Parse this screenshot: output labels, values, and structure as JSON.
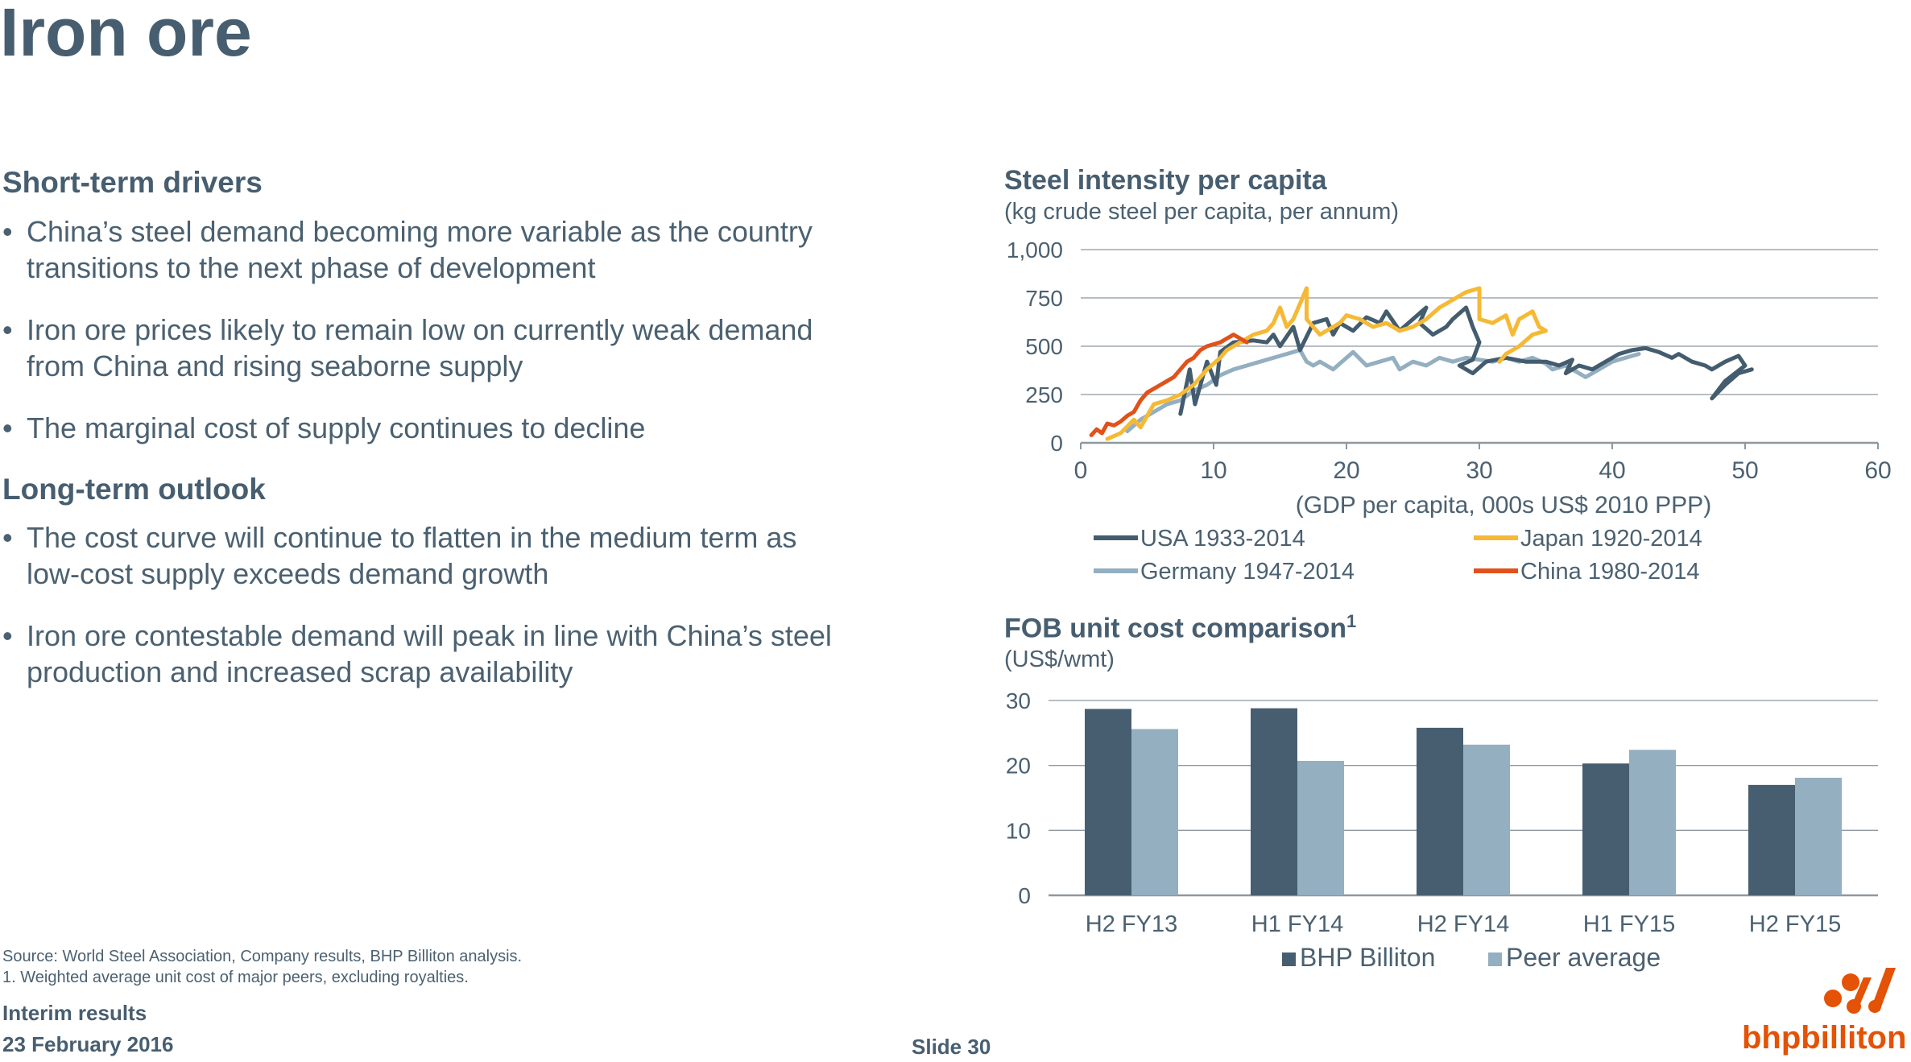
{
  "title": "Iron ore",
  "left": {
    "short_term": {
      "heading": "Short-term drivers",
      "bullets": [
        [
          "China’s steel demand becoming more variable as the country",
          "transitions to the next phase of development"
        ],
        [
          "Iron ore prices likely to remain low on currently weak demand",
          "from China and rising seaborne supply"
        ],
        [
          "The marginal cost of supply continues to decline"
        ]
      ]
    },
    "long_term": {
      "heading": "Long-term outlook",
      "bullets": [
        [
          "The cost curve will continue to flatten in the medium term as",
          "low-cost supply exceeds demand growth"
        ],
        [
          "Iron ore contestable demand will peak in line with China’s steel",
          "production and increased scrap availability"
        ]
      ]
    }
  },
  "footer": {
    "source": "Source:   World Steel Association, Company results, BHP Billiton analysis.",
    "note": "1.  Weighted average unit cost of major peers, excluding royalties.",
    "event": "Interim results",
    "date": "23 February 2016",
    "slide": "Slide 30",
    "logo": "bhpbilliton"
  },
  "colors": {
    "usa": "#435c6e",
    "japan": "#f6b935",
    "germany": "#93afc0",
    "china": "#e0521a",
    "bhp": "#475e70",
    "peer": "#93afc0",
    "grid": "#9aa4ab"
  },
  "chart_data": [
    {
      "type": "line",
      "title": "Steel intensity per capita",
      "subtitle": "(kg crude steel per capita, per annum)",
      "xlabel": "(GDP per capita, 000s US$ 2010 PPP)",
      "xlim": [
        0,
        60
      ],
      "ylim": [
        0,
        1000
      ],
      "xticks": [
        0,
        10,
        20,
        30,
        40,
        50,
        60
      ],
      "yticks": [
        0,
        250,
        500,
        750,
        1000
      ],
      "ytick_labels": [
        "0",
        "250",
        "500",
        "750",
        "1,000"
      ],
      "series": [
        {
          "name": "USA 1933-2014",
          "color_key": "usa",
          "points": [
            [
              7.5,
              150
            ],
            [
              8.2,
              380
            ],
            [
              8.6,
              200
            ],
            [
              9.5,
              420
            ],
            [
              10.2,
              300
            ],
            [
              10.5,
              470
            ],
            [
              11.5,
              520
            ],
            [
              13,
              530
            ],
            [
              14,
              520
            ],
            [
              14.5,
              560
            ],
            [
              15,
              500
            ],
            [
              16,
              600
            ],
            [
              16.5,
              480
            ],
            [
              17.5,
              620
            ],
            [
              18.5,
              640
            ],
            [
              19,
              560
            ],
            [
              19.5,
              620
            ],
            [
              20.5,
              580
            ],
            [
              21.5,
              650
            ],
            [
              22.5,
              620
            ],
            [
              23,
              680
            ],
            [
              24,
              580
            ],
            [
              25,
              640
            ],
            [
              26,
              700
            ],
            [
              25.5,
              620
            ],
            [
              26.5,
              560
            ],
            [
              27.5,
              600
            ],
            [
              28,
              640
            ],
            [
              29,
              700
            ],
            [
              29.5,
              600
            ],
            [
              30,
              520
            ],
            [
              29.5,
              430
            ],
            [
              28.5,
              400
            ],
            [
              29.5,
              360
            ],
            [
              30.5,
              420
            ],
            [
              32,
              440
            ],
            [
              33.5,
              420
            ],
            [
              35,
              420
            ],
            [
              36,
              400
            ],
            [
              37,
              430
            ],
            [
              36.5,
              360
            ],
            [
              37.5,
              400
            ],
            [
              38.5,
              380
            ],
            [
              39.5,
              420
            ],
            [
              40.5,
              460
            ],
            [
              41.5,
              480
            ],
            [
              42.5,
              490
            ],
            [
              43.5,
              470
            ],
            [
              44.5,
              440
            ],
            [
              45,
              460
            ],
            [
              46,
              420
            ],
            [
              47,
              400
            ],
            [
              47.5,
              380
            ],
            [
              48.5,
              420
            ],
            [
              49.5,
              450
            ],
            [
              50,
              400
            ],
            [
              48.5,
              320
            ],
            [
              47.5,
              230
            ],
            [
              48.5,
              300
            ],
            [
              49.5,
              360
            ],
            [
              50.5,
              380
            ]
          ]
        },
        {
          "name": "Japan 1920-2014",
          "color_key": "japan",
          "points": [
            [
              2,
              20
            ],
            [
              3,
              50
            ],
            [
              4,
              120
            ],
            [
              4.5,
              80
            ],
            [
              5,
              140
            ],
            [
              5.5,
              200
            ],
            [
              6.5,
              220
            ],
            [
              7.5,
              250
            ],
            [
              8.5,
              300
            ],
            [
              9.5,
              380
            ],
            [
              10.5,
              440
            ],
            [
              11,
              480
            ],
            [
              12,
              520
            ],
            [
              13,
              560
            ],
            [
              14,
              580
            ],
            [
              14.5,
              620
            ],
            [
              15,
              700
            ],
            [
              15.5,
              600
            ],
            [
              16,
              640
            ],
            [
              16.5,
              720
            ],
            [
              17,
              800
            ],
            [
              17,
              640
            ],
            [
              18,
              560
            ],
            [
              19,
              600
            ],
            [
              19.5,
              620
            ],
            [
              20,
              660
            ],
            [
              21,
              640
            ],
            [
              22,
              600
            ],
            [
              23,
              620
            ],
            [
              24,
              580
            ],
            [
              25,
              600
            ],
            [
              26,
              640
            ],
            [
              27,
              700
            ],
            [
              28,
              740
            ],
            [
              29,
              780
            ],
            [
              30,
              800
            ],
            [
              30,
              640
            ],
            [
              31,
              620
            ],
            [
              32,
              660
            ],
            [
              32.5,
              560
            ],
            [
              33,
              640
            ],
            [
              34,
              680
            ],
            [
              34.5,
              600
            ],
            [
              35,
              580
            ],
            [
              34,
              560
            ],
            [
              33,
              500
            ],
            [
              32,
              460
            ],
            [
              31.5,
              420
            ]
          ]
        },
        {
          "name": "Germany 1947-2014",
          "color_key": "germany",
          "points": [
            [
              3.5,
              60
            ],
            [
              4.5,
              120
            ],
            [
              5.5,
              160
            ],
            [
              6.5,
              200
            ],
            [
              7.5,
              220
            ],
            [
              8.5,
              270
            ],
            [
              9.5,
              300
            ],
            [
              10.5,
              350
            ],
            [
              11.5,
              380
            ],
            [
              12.5,
              400
            ],
            [
              13.5,
              420
            ],
            [
              14.5,
              440
            ],
            [
              15.5,
              460
            ],
            [
              16.5,
              480
            ],
            [
              17,
              420
            ],
            [
              17.5,
              400
            ],
            [
              18,
              420
            ],
            [
              19,
              380
            ],
            [
              20,
              440
            ],
            [
              20.5,
              470
            ],
            [
              21.5,
              400
            ],
            [
              22.5,
              420
            ],
            [
              23.5,
              440
            ],
            [
              24,
              380
            ],
            [
              25,
              420
            ],
            [
              26,
              400
            ],
            [
              27,
              440
            ],
            [
              28,
              420
            ],
            [
              29,
              440
            ],
            [
              30,
              430
            ],
            [
              31,
              420
            ],
            [
              32,
              440
            ],
            [
              33,
              420
            ],
            [
              34,
              440
            ],
            [
              35,
              410
            ],
            [
              35.5,
              380
            ],
            [
              36.5,
              400
            ],
            [
              37,
              380
            ],
            [
              38,
              340
            ],
            [
              39,
              380
            ],
            [
              40,
              420
            ],
            [
              41,
              440
            ],
            [
              42,
              460
            ]
          ]
        },
        {
          "name": "China 1980-2014",
          "color_key": "china",
          "points": [
            [
              0.8,
              40
            ],
            [
              1.2,
              70
            ],
            [
              1.6,
              50
            ],
            [
              2,
              100
            ],
            [
              2.5,
              90
            ],
            [
              3,
              110
            ],
            [
              3.5,
              140
            ],
            [
              4,
              160
            ],
            [
              4.5,
              220
            ],
            [
              5,
              260
            ],
            [
              5.5,
              280
            ],
            [
              6,
              300
            ],
            [
              6.5,
              320
            ],
            [
              7,
              340
            ],
            [
              7.5,
              380
            ],
            [
              8,
              420
            ],
            [
              8.5,
              440
            ],
            [
              9,
              480
            ],
            [
              9.5,
              500
            ],
            [
              10,
              510
            ],
            [
              10.5,
              520
            ],
            [
              11,
              540
            ],
            [
              11.5,
              560
            ],
            [
              12,
              540
            ],
            [
              12.5,
              520
            ]
          ]
        }
      ]
    },
    {
      "type": "bar",
      "title": "FOB unit cost comparison",
      "title_superscript": "1",
      "subtitle": "(US$/wmt)",
      "categories": [
        "H2 FY13",
        "H1 FY14",
        "H2 FY14",
        "H1 FY15",
        "H2 FY15"
      ],
      "ylim": [
        0,
        30
      ],
      "yticks": [
        0,
        10,
        20,
        30
      ],
      "series": [
        {
          "name": "BHP Billiton",
          "color_key": "bhp",
          "values": [
            28.7,
            28.8,
            25.8,
            20.3,
            17.0
          ]
        },
        {
          "name": "Peer average",
          "color_key": "peer",
          "values": [
            25.6,
            20.7,
            23.2,
            22.4,
            18.1
          ]
        }
      ]
    }
  ]
}
